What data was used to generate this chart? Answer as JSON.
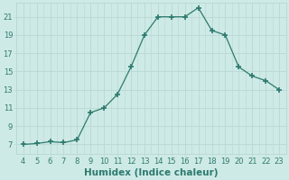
{
  "x": [
    4,
    5,
    6,
    7,
    8,
    9,
    10,
    11,
    12,
    13,
    14,
    15,
    16,
    17,
    18,
    19,
    20,
    21,
    22,
    23
  ],
  "y": [
    7,
    7.1,
    7.3,
    7.2,
    7.5,
    10.5,
    11.0,
    12.5,
    15.5,
    19.0,
    21.0,
    21.0,
    21.0,
    22.0,
    19.5,
    19.0,
    15.5,
    14.5,
    14.0,
    13.0
  ],
  "line_color": "#2d7a6e",
  "marker": "+",
  "marker_size": 4,
  "marker_lw": 1.2,
  "line_width": 0.9,
  "bg_color": "#ceeae6",
  "grid_color": "#b8d8d4",
  "xlabel": "Humidex (Indice chaleur)",
  "xlim": [
    3.5,
    23.5
  ],
  "ylim": [
    6.0,
    22.5
  ],
  "xticks": [
    4,
    5,
    6,
    7,
    8,
    9,
    10,
    11,
    12,
    13,
    14,
    15,
    16,
    17,
    18,
    19,
    20,
    21,
    22,
    23
  ],
  "yticks": [
    7,
    9,
    11,
    13,
    15,
    17,
    19,
    21
  ],
  "tick_fontsize": 6.0,
  "xlabel_fontsize": 7.5,
  "label_color": "#2d7a6e"
}
